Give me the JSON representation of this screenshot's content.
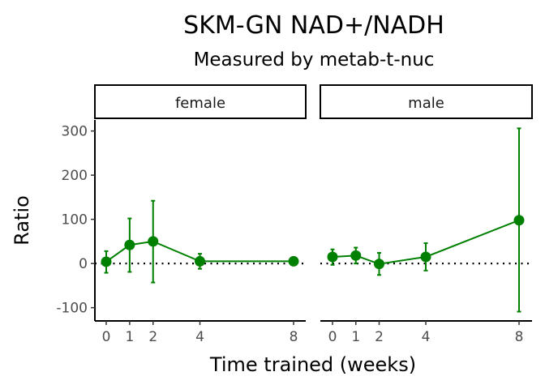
{
  "colors": {
    "series": "#008000",
    "reference_line": "#000000"
  },
  "chart_data": {
    "type": "line",
    "title": "SKM-GN NAD+/NADH",
    "subtitle": "Measured by metab-t-nuc",
    "xlabel": "Time trained (weeks)",
    "ylabel": "Ratio",
    "ylim": [
      -130,
      325
    ],
    "y_ticks": [
      -100,
      0,
      100,
      200,
      300
    ],
    "x_ticks": [
      0,
      1,
      2,
      4,
      8
    ],
    "reference_line_y": 0,
    "grid": false,
    "legend": "none",
    "panels": [
      {
        "label": "female",
        "points": [
          {
            "x": 0,
            "y": 4,
            "lower": -21,
            "upper": 28
          },
          {
            "x": 1,
            "y": 42,
            "lower": -19,
            "upper": 102
          },
          {
            "x": 2,
            "y": 50,
            "lower": -43,
            "upper": 142
          },
          {
            "x": 4,
            "y": 5,
            "lower": -12,
            "upper": 22
          },
          {
            "x": 8,
            "y": 5,
            "lower": 0,
            "upper": 10
          }
        ]
      },
      {
        "label": "male",
        "points": [
          {
            "x": 0,
            "y": 15,
            "lower": -3,
            "upper": 32
          },
          {
            "x": 1,
            "y": 18,
            "lower": 0,
            "upper": 36
          },
          {
            "x": 2,
            "y": -1,
            "lower": -26,
            "upper": 24
          },
          {
            "x": 4,
            "y": 15,
            "lower": -16,
            "upper": 46
          },
          {
            "x": 8,
            "y": 98,
            "lower": -109,
            "upper": 306
          }
        ]
      }
    ]
  }
}
